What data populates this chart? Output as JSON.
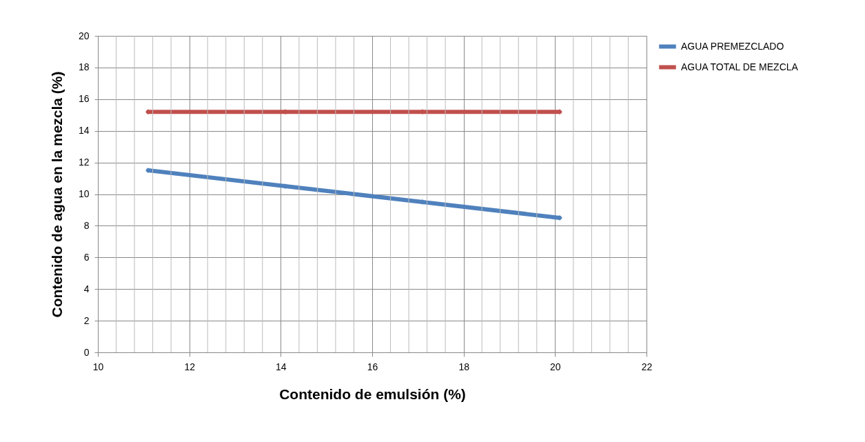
{
  "chart_data": {
    "type": "line",
    "xlabel": "Contenido de emulsión (%)",
    "ylabel": "Contenido de agua en la mezcla (%)",
    "x": [
      11.1,
      14.1,
      17.1,
      20.1
    ],
    "series": [
      {
        "name": "AGUA PREMEZCLADO",
        "color": "#4f81bd",
        "values": [
          11.5,
          10.5,
          9.5,
          8.5
        ]
      },
      {
        "name": "AGUA TOTAL  DE MEZCLA",
        "color": "#c0504d",
        "values": [
          15.2,
          15.2,
          15.2,
          15.2
        ]
      }
    ],
    "xlim": [
      10,
      22
    ],
    "xticks": [
      10,
      {
        "value": 10.4,
        "label": null
      },
      {
        "value": 10.8,
        "label": null
      },
      {
        "value": 11.2,
        "label": null
      },
      {
        "value": 11.6,
        "label": null
      },
      12,
      {
        "value": 12.4,
        "label": null
      },
      {
        "value": 12.8,
        "label": null
      },
      {
        "value": 13.2,
        "label": null
      },
      {
        "value": 13.6,
        "label": null
      },
      14,
      {
        "value": 14.4,
        "label": null
      },
      {
        "value": 14.8,
        "label": null
      },
      {
        "value": 15.2,
        "label": null
      },
      {
        "value": 15.6,
        "label": null
      },
      16,
      {
        "value": 16.4,
        "label": null
      },
      {
        "value": 16.8,
        "label": null
      },
      {
        "value": 17.2,
        "label": null
      },
      {
        "value": 17.6,
        "label": null
      },
      18,
      {
        "value": 18.4,
        "label": null
      },
      {
        "value": 18.8,
        "label": null
      },
      {
        "value": 19.2,
        "label": null
      },
      {
        "value": 19.6,
        "label": null
      },
      20,
      {
        "value": 20.4,
        "label": null
      },
      {
        "value": 20.8,
        "label": null
      },
      {
        "value": 21.2,
        "label": null
      },
      {
        "value": 21.6,
        "label": null
      },
      22
    ],
    "ylim": [
      0,
      20
    ],
    "yticks": [
      0,
      2,
      4,
      6,
      8,
      10,
      12,
      14,
      16,
      18,
      20
    ],
    "grid": true,
    "legend": "right",
    "marker": "diamond",
    "line_style": "solid"
  }
}
